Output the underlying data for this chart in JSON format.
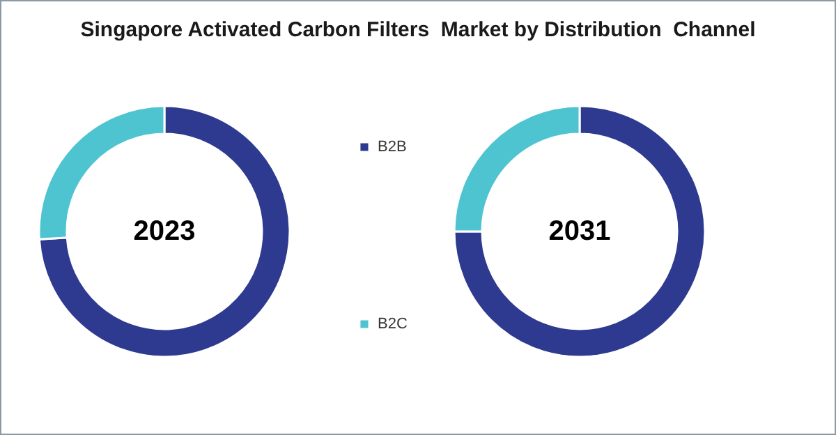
{
  "chart_data": {
    "type": "donut",
    "title": "Singapore Activated Carbon Filters  Market by Distribution  Channel",
    "categories": [
      "B2B",
      "B2C"
    ],
    "colors": [
      "#2e3a8f",
      "#4fc4d1"
    ],
    "legend": "right",
    "series": [
      {
        "name": "2023",
        "values": [
          74,
          26
        ]
      },
      {
        "name": "2031",
        "values": [
          75,
          25
        ]
      }
    ]
  }
}
